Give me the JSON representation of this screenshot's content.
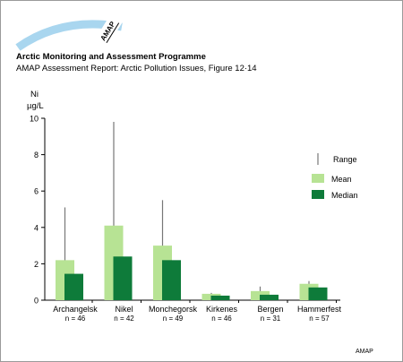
{
  "header": {
    "logo_text": "AMAP",
    "title": "Arctic Monitoring and Assessment Programme",
    "subtitle": "AMAP Assessment Report: Arctic Pollution Issues, Figure 12·14"
  },
  "credit": "AMAP",
  "colors": {
    "mean": "#b7e394",
    "median": "#0e7b3a",
    "range": "#777777",
    "arc": "#a9d6ef"
  },
  "chart_data": {
    "type": "bar",
    "ylabel_line1": "Ni",
    "ylabel_line2": "µg/L",
    "ylim": [
      0,
      10
    ],
    "yticks": [
      "0",
      "2",
      "4",
      "6",
      "8",
      "10"
    ],
    "grid": false,
    "legend_position": "right",
    "legend": {
      "range_label": "Range",
      "mean_label": "Mean",
      "median_label": "Median"
    },
    "categories": [
      {
        "name": "Archangelsk",
        "n": "n = 46"
      },
      {
        "name": "Nikel",
        "n": "n = 42"
      },
      {
        "name": "Monchegorsk",
        "n": "n = 49"
      },
      {
        "name": "Kirkenes",
        "n": "n = 46"
      },
      {
        "name": "Bergen",
        "n": "n = 31"
      },
      {
        "name": "Hammerfest",
        "n": "n = 57"
      }
    ],
    "series": [
      {
        "name": "Mean",
        "values": [
          2.2,
          4.1,
          3.0,
          0.35,
          0.5,
          0.9
        ]
      },
      {
        "name": "Median",
        "values": [
          1.45,
          2.4,
          2.2,
          0.25,
          0.3,
          0.7
        ]
      }
    ],
    "range_max": [
      5.1,
      9.8,
      5.5,
      0.4,
      0.75,
      1.05
    ]
  }
}
